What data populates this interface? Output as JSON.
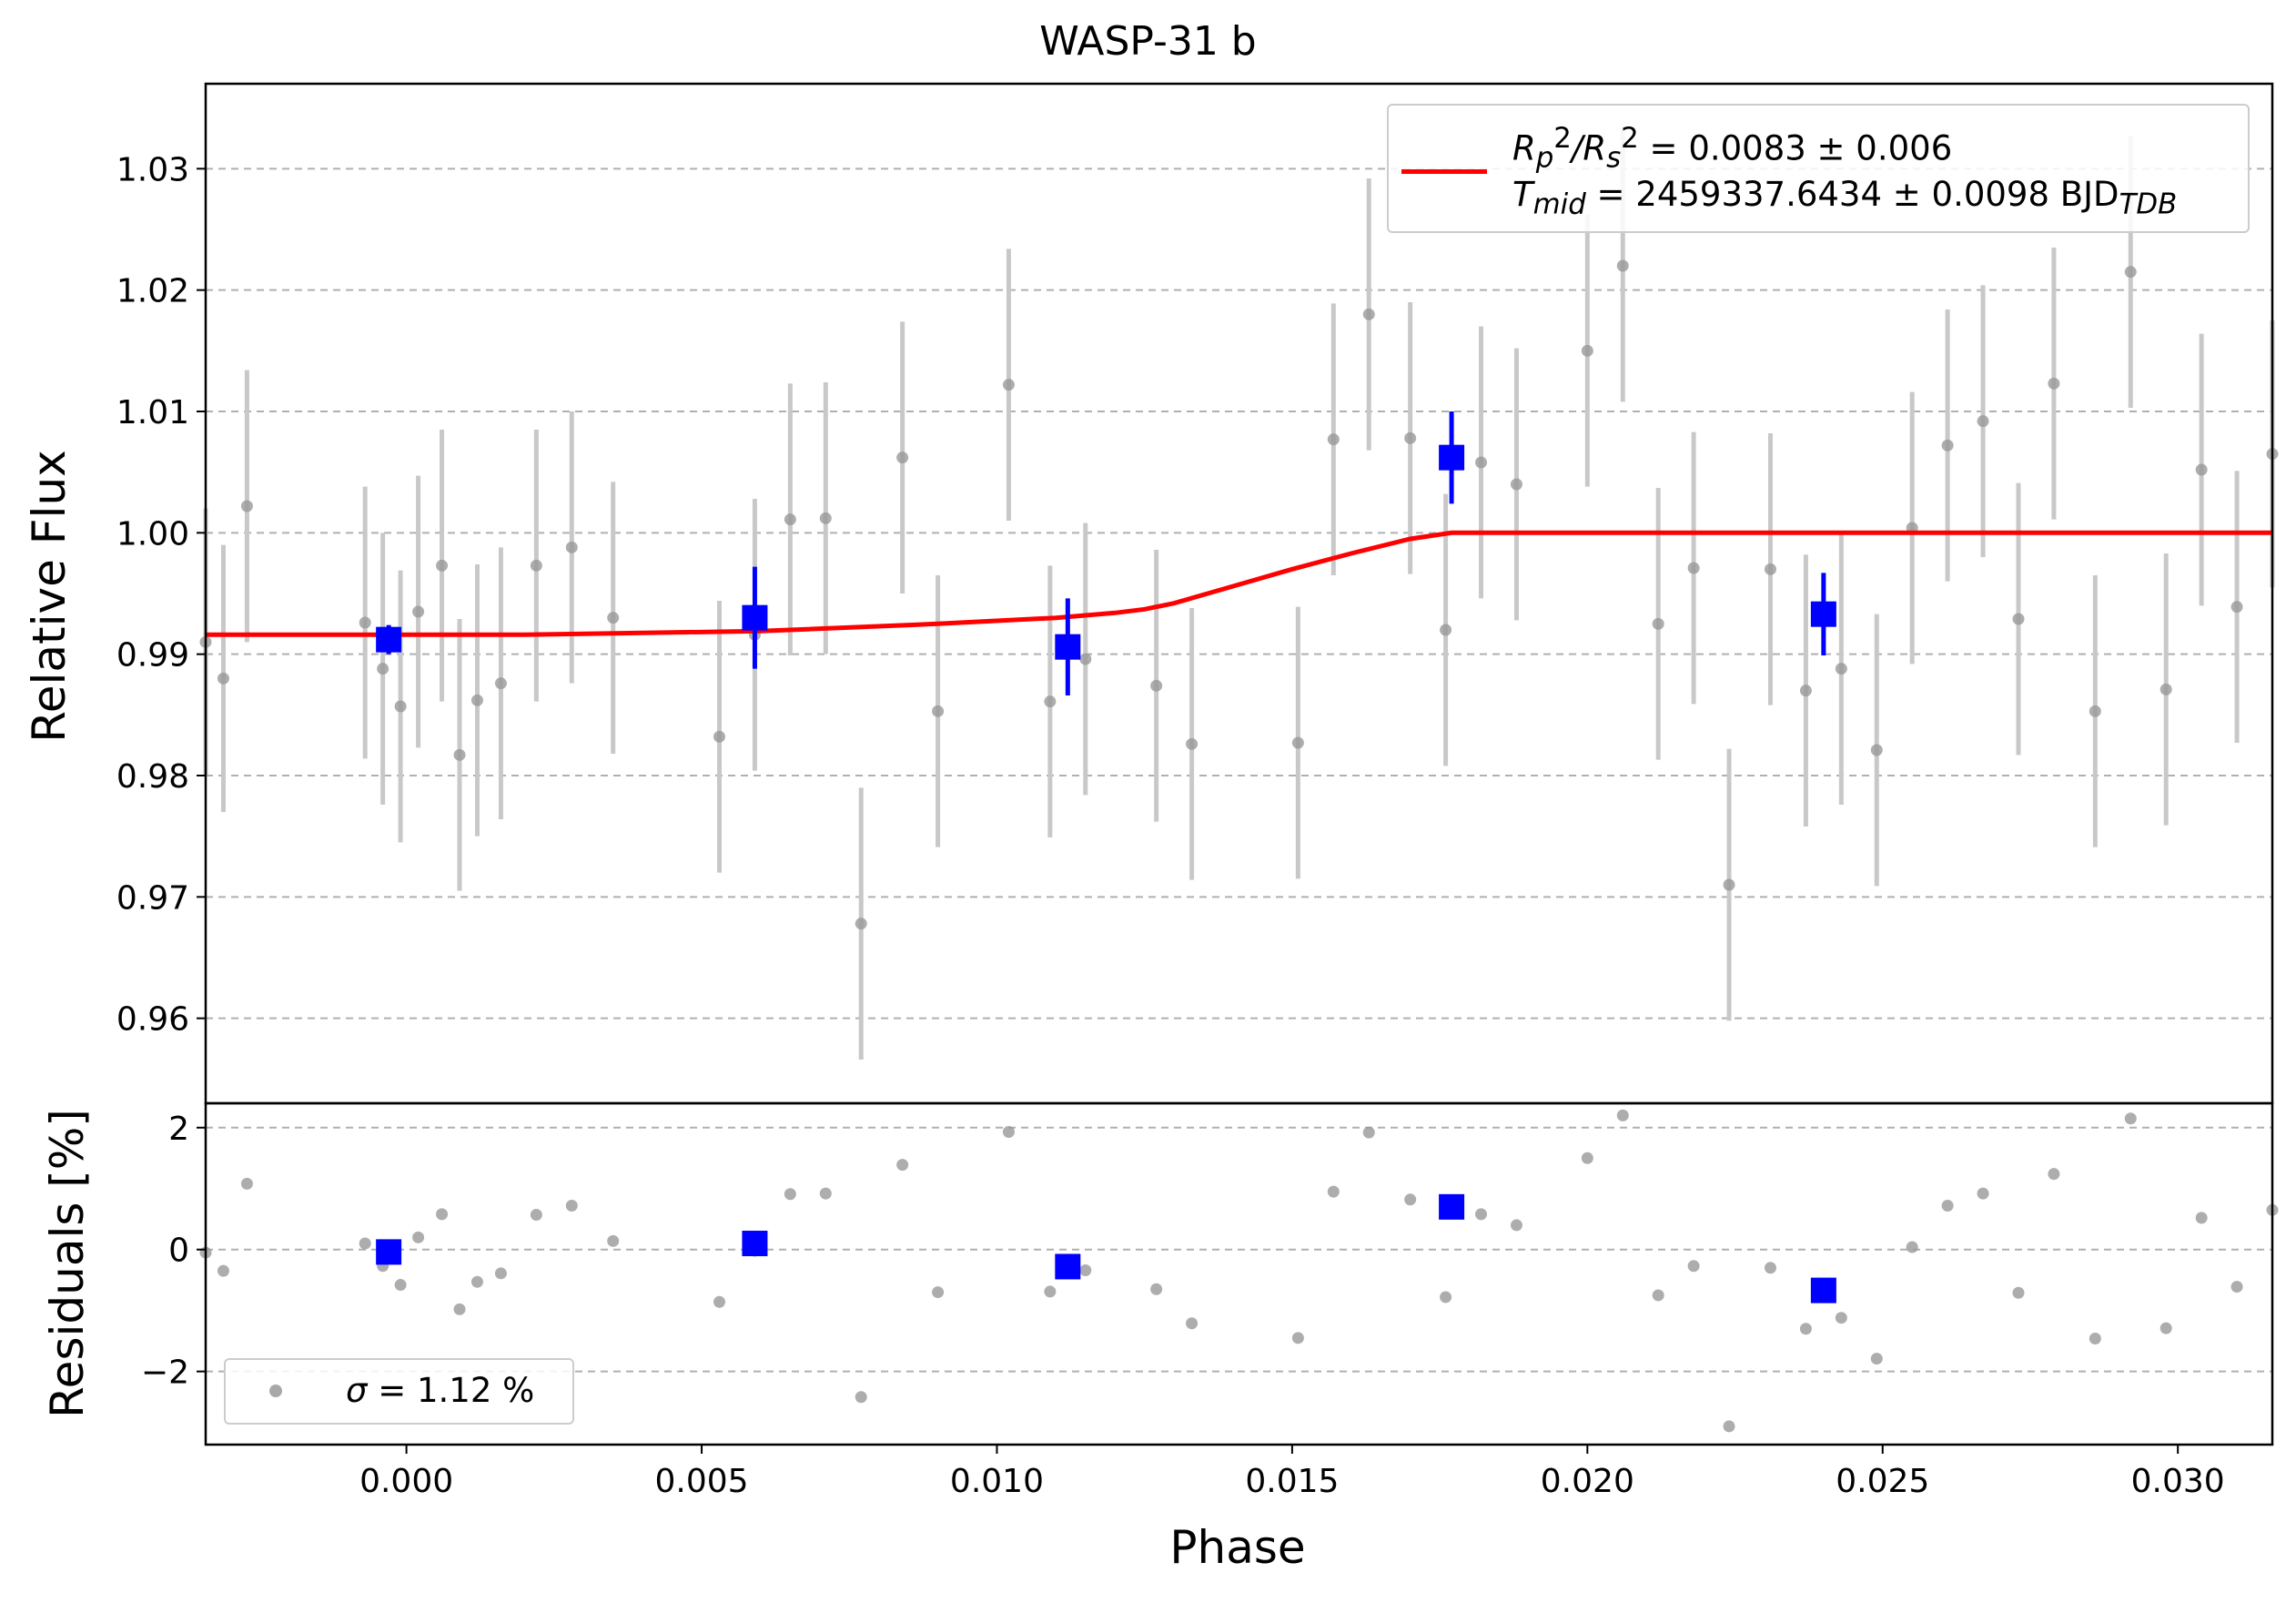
{
  "chart_data": [
    {
      "type": "scatter",
      "title": "WASP-31 b",
      "xlabel": "",
      "ylabel": "Relative Flux",
      "xlim": [
        -0.0034,
        0.0316
      ],
      "ylim": [
        0.953,
        1.037
      ],
      "yticks": [
        0.96,
        0.97,
        0.98,
        0.99,
        1.0,
        1.01,
        1.02,
        1.03
      ],
      "ytick_labels": [
        "0.96",
        "0.97",
        "0.98",
        "0.99",
        "1.00",
        "1.01",
        "1.02",
        "1.03"
      ],
      "grid": "y-dashed",
      "legend_position": "top-right",
      "legend": {
        "rp_label": "R_p^2/R_s^2 = 0.0083 ± 0.006",
        "rp_prefix_R": "R",
        "rp_sub_p": "p",
        "rp_sup": "2",
        "rp_slash_R": "/R",
        "rp_sub_s": "s",
        "rp_value": " = 0.0083 ± 0.006",
        "tmid_T": "T",
        "tmid_sub": "mid",
        "tmid_value": " = 2459337.6434 ± 0.0098 BJD",
        "tmid_unit_sub": "TDB"
      },
      "series": [
        {
          "kind": "data",
          "color": "#999999",
          "x": [
            -0.0034,
            -0.0031,
            -0.0027,
            -0.0007,
            -0.0004,
            -0.0001,
            0.0002,
            0.0006,
            0.0009,
            0.0012,
            0.0016,
            0.0022,
            0.0028,
            0.0035,
            0.0053,
            0.0059,
            0.0065,
            0.0071,
            0.0077,
            0.0084,
            0.009,
            0.0102,
            0.0109,
            0.0115,
            0.0127,
            0.0133,
            0.0151,
            0.0157,
            0.0163,
            0.017,
            0.0176,
            0.0182,
            0.0188,
            0.02,
            0.0206,
            0.0212,
            0.0218,
            0.0224,
            0.0231,
            0.0237,
            0.0243,
            0.0249,
            0.0255,
            0.0261,
            0.0267,
            0.0273,
            0.0279,
            0.0286,
            0.0292,
            0.0298,
            0.0304,
            0.031,
            0.0316
          ],
          "y": [
            0.991,
            0.988,
            1.0022,
            0.9926,
            0.9888,
            0.9857,
            0.9935,
            0.9973,
            0.9817,
            0.9862,
            0.9876,
            0.9973,
            0.9988,
            0.993,
            0.9832,
            0.9916,
            1.0011,
            1.0012,
            0.9678,
            1.0062,
            0.9853,
            1.0122,
            0.9861,
            0.9896,
            0.9874,
            0.9826,
            0.9827,
            1.0077,
            1.018,
            1.0078,
            0.992,
            1.0058,
            1.004,
            1.015,
            1.022,
            0.9925,
            0.9971,
            0.971,
            0.997,
            0.987,
            0.9888,
            0.9821,
            1.0004,
            1.0072,
            1.0092,
            0.9929,
            1.0123,
            0.9853,
            1.0215,
            0.9871,
            1.0052,
            0.9939,
            1.0065
          ],
          "err": [
            0.011,
            0.011,
            0.0112,
            0.0112,
            0.0112,
            0.0112,
            0.0112,
            0.0112,
            0.0112,
            0.0112,
            0.0112,
            0.0112,
            0.0112,
            0.0112,
            0.0112,
            0.0112,
            0.0112,
            0.0112,
            0.0112,
            0.0112,
            0.0112,
            0.0112,
            0.0112,
            0.0112,
            0.0112,
            0.0112,
            0.0112,
            0.0112,
            0.0112,
            0.0112,
            0.0112,
            0.0112,
            0.0112,
            0.0112,
            0.0112,
            0.0112,
            0.0112,
            0.0112,
            0.0112,
            0.0112,
            0.0112,
            0.0112,
            0.0112,
            0.0112,
            0.0112,
            0.0112,
            0.0112,
            0.0112,
            0.0112,
            0.0112,
            0.0112,
            0.0112,
            0.011
          ]
        },
        {
          "kind": "binned",
          "color": "#0000ff",
          "x": [
            -0.0003,
            0.0059,
            0.0112,
            0.0177,
            0.024
          ],
          "y": [
            0.9912,
            0.993,
            0.9906,
            1.0062,
            0.9933
          ],
          "err": [
            0.0012,
            0.0042,
            0.004,
            0.0038,
            0.0034
          ]
        },
        {
          "kind": "model",
          "color": "#ff0000",
          "x": [
            -0.0034,
            0.002,
            0.006,
            0.009,
            0.011,
            0.012,
            0.0125,
            0.013,
            0.014,
            0.015,
            0.016,
            0.017,
            0.0177,
            0.0316
          ],
          "y": [
            0.9916,
            0.9916,
            0.9919,
            0.9925,
            0.993,
            0.9934,
            0.9937,
            0.9942,
            0.9956,
            0.997,
            0.9983,
            0.9995,
            1.0,
            1.0
          ]
        }
      ]
    },
    {
      "type": "scatter",
      "title": "",
      "xlabel": "Phase",
      "ylabel": "Residuals [%]",
      "xlim": [
        -0.0034,
        0.0316
      ],
      "ylim": [
        -3.2,
        2.4
      ],
      "xticks": [
        0.0,
        0.005,
        0.01,
        0.015,
        0.02,
        0.025,
        0.03
      ],
      "xtick_labels": [
        "0.000",
        "0.005",
        "0.010",
        "0.015",
        "0.020",
        "0.025",
        "0.030"
      ],
      "yticks": [
        -2,
        0,
        2
      ],
      "ytick_labels": [
        "−2",
        "0",
        "2"
      ],
      "grid": "y-dashed",
      "legend_position": "lower-left",
      "legend": {
        "sigma_symbol": "σ",
        "sigma_value": " = 1.12 %"
      },
      "series": [
        {
          "kind": "data",
          "color": "#999999",
          "x": [
            -0.0034,
            -0.0031,
            -0.0027,
            -0.0007,
            -0.0004,
            -0.0001,
            0.0002,
            0.0006,
            0.0009,
            0.0012,
            0.0016,
            0.0022,
            0.0028,
            0.0035,
            0.0053,
            0.0059,
            0.0065,
            0.0071,
            0.0077,
            0.0084,
            0.009,
            0.0102,
            0.0109,
            0.0115,
            0.0127,
            0.0133,
            0.0151,
            0.0157,
            0.0163,
            0.017,
            0.0176,
            0.0182,
            0.0188,
            0.02,
            0.0206,
            0.0212,
            0.0218,
            0.0224,
            0.0231,
            0.0237,
            0.0243,
            0.0249,
            0.0255,
            0.0261,
            0.0267,
            0.0273,
            0.0279,
            0.0286,
            0.0292,
            0.0298,
            0.0304,
            0.031,
            0.0316
          ],
          "y": [
            -0.05,
            -0.35,
            1.08,
            0.1,
            -0.27,
            -0.58,
            0.2,
            0.58,
            -0.98,
            -0.53,
            -0.39,
            0.57,
            0.72,
            0.14,
            -0.86,
            -0.02,
            0.91,
            0.92,
            -2.42,
            1.39,
            -0.7,
            1.93,
            -0.69,
            -0.34,
            -0.65,
            -1.21,
            -1.45,
            0.95,
            1.92,
            0.82,
            -0.78,
            0.58,
            0.4,
            1.5,
            2.2,
            -0.75,
            -0.27,
            -2.9,
            -0.3,
            -1.3,
            -1.12,
            -1.79,
            0.04,
            0.72,
            0.92,
            -0.71,
            1.24,
            -1.46,
            2.15,
            -1.29,
            0.52,
            -0.61,
            0.65
          ]
        },
        {
          "kind": "binned",
          "color": "#0000ff",
          "x": [
            -0.0003,
            0.0059,
            0.0112,
            0.0177,
            0.024
          ],
          "y": [
            -0.04,
            0.1,
            -0.28,
            0.7,
            -0.67
          ]
        }
      ]
    }
  ]
}
